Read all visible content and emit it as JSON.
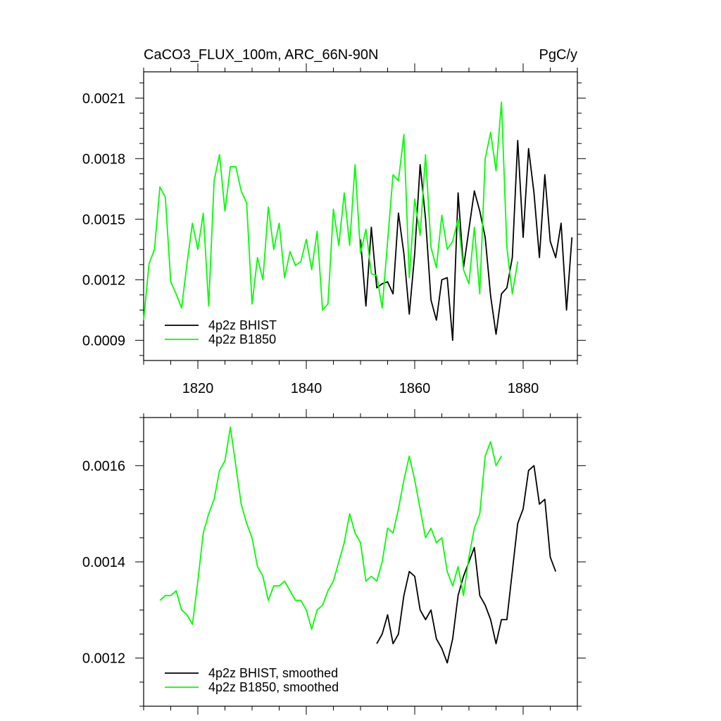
{
  "chart_data": [
    {
      "type": "line",
      "title": "CaCO3_FLUX_100m, ARC_66N-90N",
      "units": "PgC/y",
      "xlim": [
        1810,
        1890
      ],
      "ylim": [
        0.0008,
        0.00223
      ],
      "xticks": [
        1820,
        1840,
        1860,
        1880
      ],
      "xtick_labels": [
        "1820",
        "1840",
        "1860",
        "1880"
      ],
      "yticks": [
        0.0009,
        0.0012,
        0.0015,
        0.0018,
        0.0021
      ],
      "ytick_labels": [
        "0.0009",
        "0.0012",
        "0.0015",
        "0.0018",
        "0.0021"
      ],
      "legend": "bottom-left",
      "series": [
        {
          "name": "4p2z BHIST",
          "color": "#000000",
          "x": [
            1850,
            1851,
            1852,
            1853,
            1854,
            1855,
            1856,
            1857,
            1858,
            1859,
            1860,
            1861,
            1862,
            1863,
            1864,
            1865,
            1866,
            1867,
            1868,
            1869,
            1870,
            1871,
            1872,
            1873,
            1874,
            1875,
            1876,
            1877,
            1878,
            1879,
            1880,
            1881,
            1882,
            1883,
            1884,
            1885,
            1886,
            1887,
            1888,
            1889
          ],
          "y": [
            0.0014,
            0.00107,
            0.00146,
            0.00116,
            0.00118,
            0.00119,
            0.00113,
            0.00153,
            0.00133,
            0.00103,
            0.00133,
            0.00177,
            0.0015,
            0.0011,
            0.001,
            0.0012,
            0.00121,
            0.0009,
            0.00163,
            0.00126,
            0.00145,
            0.00164,
            0.00154,
            0.00141,
            0.00112,
            0.00093,
            0.00113,
            0.00116,
            0.00131,
            0.00189,
            0.00141,
            0.00185,
            0.00163,
            0.00131,
            0.00172,
            0.00139,
            0.00131,
            0.00148,
            0.00105,
            0.00141
          ]
        },
        {
          "name": "4p2z B1850",
          "color": "#00ff00",
          "x": [
            1810,
            1811,
            1812,
            1813,
            1814,
            1815,
            1816,
            1817,
            1818,
            1819,
            1820,
            1821,
            1822,
            1823,
            1824,
            1825,
            1826,
            1827,
            1828,
            1829,
            1830,
            1831,
            1832,
            1833,
            1834,
            1835,
            1836,
            1837,
            1838,
            1839,
            1840,
            1841,
            1842,
            1843,
            1844,
            1845,
            1846,
            1847,
            1848,
            1849,
            1850,
            1851,
            1852,
            1853,
            1854,
            1855,
            1856,
            1857,
            1858,
            1859,
            1860,
            1861,
            1862,
            1863,
            1864,
            1865,
            1866,
            1867,
            1868,
            1869,
            1870,
            1871,
            1872,
            1873,
            1874,
            1875,
            1876,
            1877,
            1878,
            1879
          ],
          "y": [
            0.001,
            0.00128,
            0.00135,
            0.00166,
            0.00161,
            0.00119,
            0.00113,
            0.00106,
            0.00128,
            0.00148,
            0.00135,
            0.00153,
            0.00107,
            0.00169,
            0.00182,
            0.00154,
            0.00176,
            0.00176,
            0.00164,
            0.00158,
            0.00108,
            0.00131,
            0.0012,
            0.00156,
            0.00135,
            0.00148,
            0.00121,
            0.00134,
            0.00127,
            0.00129,
            0.0014,
            0.00125,
            0.00144,
            0.00105,
            0.00108,
            0.00155,
            0.00137,
            0.00163,
            0.00137,
            0.00177,
            0.00133,
            0.00145,
            0.00123,
            0.00122,
            0.00106,
            0.00139,
            0.00172,
            0.00169,
            0.00192,
            0.00121,
            0.0016,
            0.00142,
            0.00182,
            0.00136,
            0.00126,
            0.00152,
            0.00135,
            0.00139,
            0.0015,
            0.00125,
            0.00118,
            0.00146,
            0.00113,
            0.0018,
            0.00193,
            0.00174,
            0.00208,
            0.00136,
            0.00113,
            0.00129
          ]
        }
      ]
    },
    {
      "type": "line",
      "xlim": [
        1810,
        1890
      ],
      "ylim": [
        0.0011,
        0.0017
      ],
      "xticks": [
        1820,
        1840,
        1860,
        1880
      ],
      "yticks": [
        0.0012,
        0.0014,
        0.0016
      ],
      "ytick_labels": [
        "0.0012",
        "0.0014",
        "0.0016"
      ],
      "legend": "bottom-left",
      "series": [
        {
          "name": "4p2z BHIST, smoothed",
          "color": "#000000",
          "x": [
            1853,
            1854,
            1855,
            1856,
            1857,
            1858,
            1859,
            1860,
            1861,
            1862,
            1863,
            1864,
            1865,
            1866,
            1867,
            1868,
            1869,
            1870,
            1871,
            1872,
            1873,
            1874,
            1875,
            1876,
            1877,
            1878,
            1879,
            1880,
            1881,
            1882,
            1883,
            1884,
            1885,
            1886
          ],
          "y": [
            0.00123,
            0.00125,
            0.00129,
            0.00123,
            0.00125,
            0.00133,
            0.00138,
            0.00137,
            0.0013,
            0.00128,
            0.0013,
            0.00124,
            0.00122,
            0.00119,
            0.00124,
            0.00133,
            0.00137,
            0.0014,
            0.00143,
            0.00133,
            0.00131,
            0.00128,
            0.00123,
            0.00128,
            0.00128,
            0.00138,
            0.00148,
            0.00151,
            0.00159,
            0.0016,
            0.00152,
            0.00153,
            0.00141,
            0.00138
          ]
        },
        {
          "name": "4p2z B1850, smoothed",
          "color": "#00ff00",
          "x": [
            1813,
            1814,
            1815,
            1816,
            1817,
            1818,
            1819,
            1820,
            1821,
            1822,
            1823,
            1824,
            1825,
            1826,
            1827,
            1828,
            1829,
            1830,
            1831,
            1832,
            1833,
            1834,
            1835,
            1836,
            1837,
            1838,
            1839,
            1840,
            1841,
            1842,
            1843,
            1844,
            1845,
            1846,
            1847,
            1848,
            1849,
            1850,
            1851,
            1852,
            1853,
            1854,
            1855,
            1856,
            1857,
            1858,
            1859,
            1860,
            1861,
            1862,
            1863,
            1864,
            1865,
            1866,
            1867,
            1868,
            1869,
            1870,
            1871,
            1872,
            1873,
            1874,
            1875,
            1876
          ],
          "y": [
            0.00132,
            0.00133,
            0.00133,
            0.00134,
            0.0013,
            0.00129,
            0.00127,
            0.00136,
            0.00146,
            0.0015,
            0.00153,
            0.00159,
            0.00161,
            0.00168,
            0.0016,
            0.00152,
            0.00148,
            0.00145,
            0.00139,
            0.00137,
            0.00132,
            0.00135,
            0.00135,
            0.00136,
            0.00134,
            0.00132,
            0.00132,
            0.0013,
            0.00126,
            0.0013,
            0.00131,
            0.00134,
            0.00136,
            0.0014,
            0.00144,
            0.0015,
            0.00146,
            0.00144,
            0.00136,
            0.00137,
            0.00136,
            0.0014,
            0.00147,
            0.00146,
            0.00151,
            0.00157,
            0.00162,
            0.00157,
            0.00151,
            0.00145,
            0.00147,
            0.00144,
            0.00145,
            0.00138,
            0.00135,
            0.00139,
            0.00133,
            0.00141,
            0.00147,
            0.0015,
            0.00162,
            0.00165,
            0.0016,
            0.00162
          ]
        }
      ]
    }
  ]
}
